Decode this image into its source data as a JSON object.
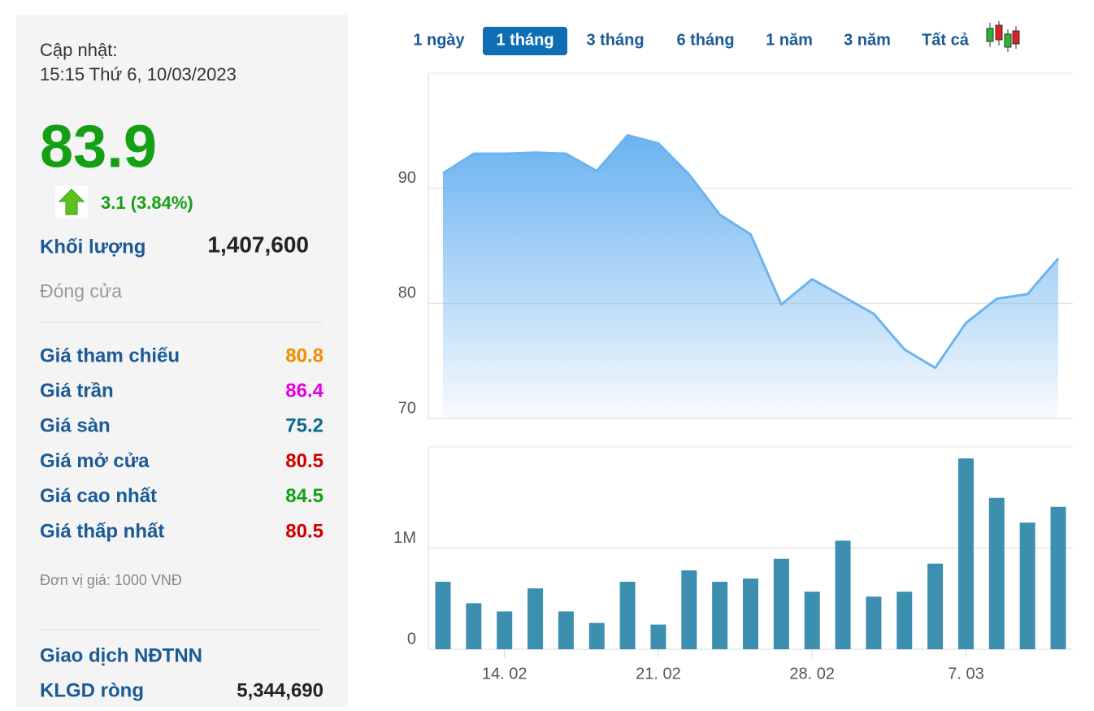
{
  "panel": {
    "update_label": "Cập nhật:",
    "update_time": "15:15 Thứ 6, 10/03/2023",
    "price": "83.9",
    "change": "3.1 (3.84%)",
    "volume_label": "Khối lượng",
    "volume_value": "1,407,600",
    "close_label": "Đóng cửa",
    "rows": [
      {
        "label": "Giá tham chiếu",
        "value": "80.8",
        "color": "#f28c00"
      },
      {
        "label": "Giá trần",
        "value": "86.4",
        "color": "#e600e6"
      },
      {
        "label": "Giá sàn",
        "value": "75.2",
        "color": "#0a6e91"
      },
      {
        "label": "Giá mở cửa",
        "value": "80.5",
        "color": "#d40000"
      },
      {
        "label": "Giá cao nhất",
        "value": "84.5",
        "color": "#14a014"
      },
      {
        "label": "Giá thấp nhất",
        "value": "80.5",
        "color": "#d40000"
      }
    ],
    "unit_note": "Đơn vị giá: 1000 VNĐ",
    "foreign_title": "Giao dịch NĐTNN",
    "net_label": "KLGD ròng",
    "net_value": "5,344,690"
  },
  "tabs": {
    "items": [
      "1 ngày",
      "1 tháng",
      "3 tháng",
      "6 tháng",
      "1 năm",
      "3 năm",
      "Tất cả"
    ],
    "active": 1
  },
  "chart_data": [
    {
      "type": "area",
      "color": "#6cb4ee",
      "values": [
        91.3,
        93.0,
        93.0,
        93.1,
        93.0,
        91.5,
        94.6,
        93.9,
        91.2,
        87.7,
        86.0,
        79.9,
        82.1,
        80.6,
        79.1,
        76.0,
        74.4,
        78.3,
        80.4,
        80.8,
        83.9
      ],
      "ylim": [
        70,
        100
      ],
      "yticks": [
        70,
        80,
        90
      ],
      "grid": true
    },
    {
      "type": "bar",
      "color": "#3d8fb0",
      "categories": [
        null,
        null,
        "14. 02",
        null,
        null,
        null,
        null,
        "21. 02",
        null,
        null,
        null,
        null,
        "28. 02",
        null,
        null,
        null,
        null,
        "7. 03",
        null,
        null,
        null
      ],
      "values": [
        667000,
        455000,
        374000,
        602000,
        374000,
        260000,
        667000,
        244000,
        780000,
        667000,
        699000,
        894000,
        569000,
        1073000,
        520000,
        569000,
        846000,
        1886000,
        1496000,
        1252000,
        1407600
      ],
      "ylim": [
        0,
        2000000
      ],
      "yticks": [
        0,
        {
          "value": 1000000,
          "label": "1M"
        }
      ],
      "grid": true
    }
  ]
}
